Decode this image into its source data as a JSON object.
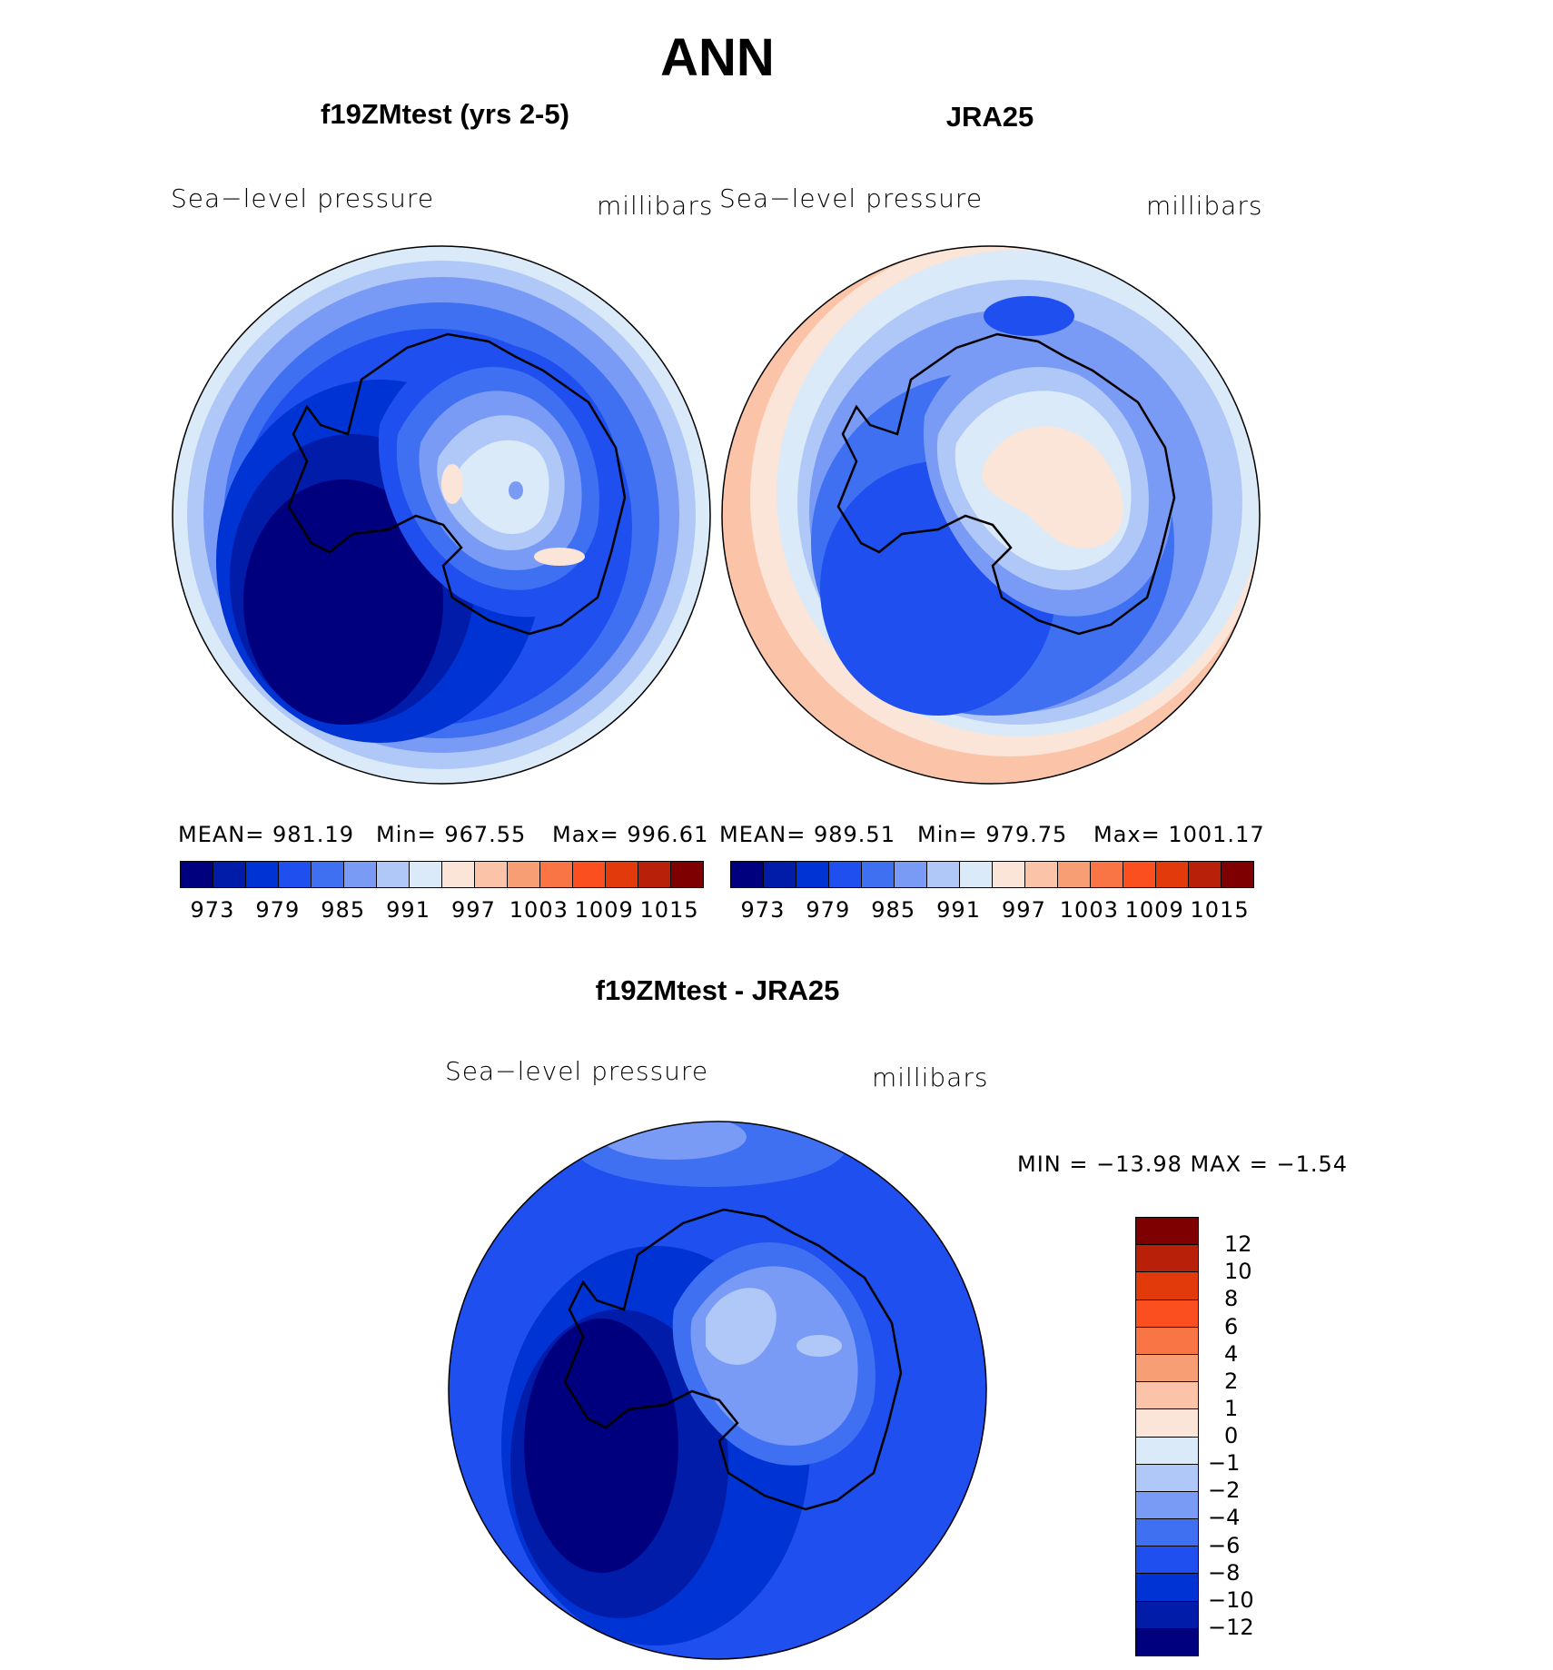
{
  "title": "ANN",
  "panels": [
    {
      "title": "f19ZMtest (yrs 2-5)",
      "left_label": "Sea−level pressure",
      "right_label": "millibars",
      "stats": {
        "mean": "MEAN=  981.19",
        "min": "Min=  967.55",
        "max": "Max=  996.61"
      }
    },
    {
      "title": "JRA25",
      "left_label": "Sea−level pressure",
      "right_label": "millibars",
      "stats": {
        "mean": "MEAN=  989.51",
        "min": "Min=  979.75",
        "max": "Max=  1001.17"
      }
    },
    {
      "title": "f19ZMtest - JRA25",
      "left_label": "Sea−level pressure",
      "right_label": "millibars",
      "stats": {
        "minmax": "MIN  =  −13.98  MAX  =    −1.54"
      }
    }
  ],
  "colorbar_main": {
    "colors": [
      "#00007f",
      "#001ca8",
      "#0033d4",
      "#1f4fee",
      "#4070f2",
      "#7a9bf5",
      "#b0c8f8",
      "#daeaf8",
      "#fbe5d8",
      "#fbc4a8",
      "#f89e74",
      "#fa7546",
      "#fb4f1f",
      "#e23a0b",
      "#b8200a",
      "#7f0000"
    ],
    "ticks": [
      "973",
      "979",
      "985",
      "991",
      "997",
      "1003",
      "1009",
      "1015"
    ]
  },
  "colorbar_diff": {
    "colors": [
      "#7f0000",
      "#b8200a",
      "#e23a0b",
      "#fb4f1f",
      "#fa7546",
      "#f89e74",
      "#fbc4a8",
      "#fbe5d8",
      "#daeaf8",
      "#b0c8f8",
      "#7a9bf5",
      "#4070f2",
      "#1f4fee",
      "#0033d4",
      "#001ca8",
      "#00007f"
    ],
    "ticks": [
      "12",
      "10",
      "8",
      "6",
      "4",
      "2",
      "1",
      "0",
      "−1",
      "−2",
      "−4",
      "−6",
      "−8",
      "−10",
      "−12"
    ]
  }
}
